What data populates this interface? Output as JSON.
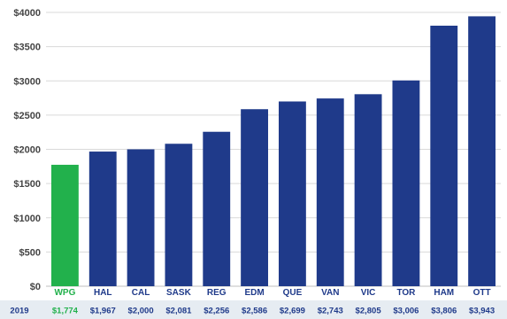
{
  "chart_data": {
    "type": "bar",
    "categories": [
      "WPG",
      "HAL",
      "CAL",
      "SASK",
      "REG",
      "EDM",
      "QUE",
      "VAN",
      "VIC",
      "TOR",
      "HAM",
      "OTT"
    ],
    "values": [
      1774,
      1967,
      2000,
      2081,
      2256,
      2586,
      2699,
      2743,
      2805,
      3006,
      3806,
      3943
    ],
    "value_labels": [
      "$1,774",
      "$1,967",
      "$2,000",
      "$2,081",
      "$2,256",
      "$2,586",
      "$2,699",
      "$2,743",
      "$2,805",
      "$3,006",
      "$3,806",
      "$3,943"
    ],
    "highlight_category": "WPG",
    "yticks": [
      0,
      500,
      1000,
      1500,
      2000,
      2500,
      3000,
      3500,
      4000
    ],
    "ytick_labels": [
      "$0",
      "$500",
      "$1000",
      "$1500",
      "$2000",
      "$2500",
      "$3000",
      "$3500",
      "$4000"
    ],
    "ylim": [
      0,
      4000
    ],
    "grid": "horizontal",
    "title": "",
    "xlabel": "",
    "ylabel": "",
    "table_row_label": "2019",
    "colors": {
      "bar": "#1f3a8a",
      "highlight_bar": "#22b14c",
      "gridline": "#d9d9d9",
      "category_label": "#1f3a8a",
      "highlight_label": "#22b14c",
      "row_band": "#e6ecf2",
      "row_label": "#1f3a8a"
    }
  }
}
